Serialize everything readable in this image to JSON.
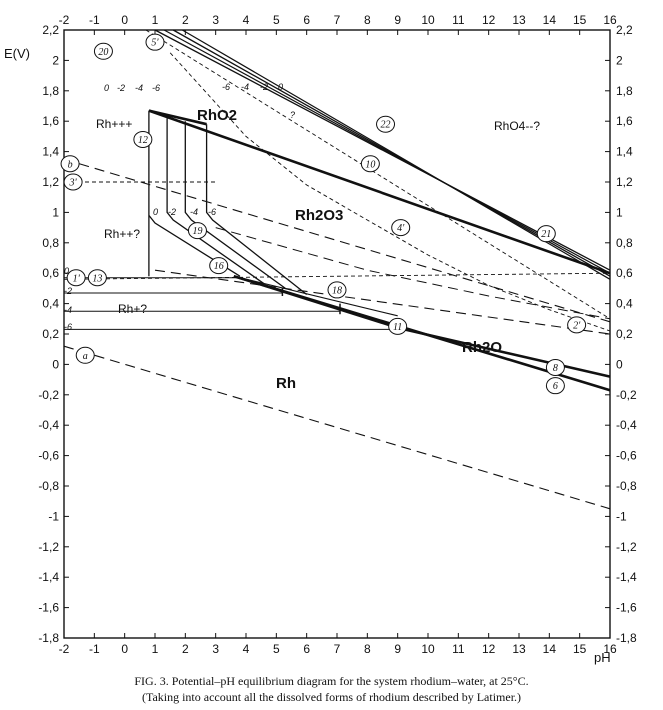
{
  "axes": {
    "ylabel": "E(V)",
    "xlabel": "pH",
    "xlim": [
      -2,
      16
    ],
    "ylim": [
      -1.8,
      2.2
    ],
    "x_ticks": [
      "-2",
      "-1",
      "0",
      "1",
      "2",
      "3",
      "4",
      "5",
      "6",
      "7",
      "8",
      "9",
      "10",
      "11",
      "12",
      "13",
      "14",
      "15",
      "16"
    ],
    "y_ticks": [
      "2,2",
      "2",
      "1,8",
      "1,6",
      "1,4",
      "1,2",
      "1",
      "0,8",
      "0,6",
      "0,4",
      "0,2",
      "0",
      "-0,2",
      "-0,4",
      "-0,6",
      "-0,8",
      "-1",
      "-1,2",
      "-1,4",
      "-1,6",
      "-1,8"
    ]
  },
  "regions": {
    "rh3plus": "Rh+++",
    "rho2": "RhO2",
    "rho4": "RhO4--?",
    "rh2o3": "Rh2O3",
    "rh2plus": "Rh++?",
    "rhplus": "Rh+?",
    "rh2o": "Rh2O",
    "rh": "Rh"
  },
  "line_numbers": [
    "20",
    "5'",
    "22",
    "10",
    "12",
    "b",
    "3'",
    "19",
    "16",
    "4'",
    "21",
    "1'",
    "13",
    "18",
    "11",
    "2'",
    "a",
    "8",
    "6"
  ],
  "concentration_labels": {
    "top": [
      "0",
      "-2",
      "-4",
      "-6"
    ],
    "top_right": [
      "-6",
      "-4",
      "-2",
      "0"
    ],
    "mid": [
      "0",
      "-2",
      "-4",
      "-6"
    ],
    "left": [
      "0",
      "-2",
      "-4",
      "-6"
    ],
    "question": "?"
  },
  "caption": {
    "line1": "FIG. 3. Potential–pH equilibrium diagram for the system rhodium–water, at 25°C.",
    "line2": "(Taking into account all the dissolved forms of rhodium described by Latimer.)"
  },
  "chart_data": {
    "type": "diagram",
    "xlabel": "pH",
    "ylabel": "E(V)",
    "xlim": [
      -2,
      16
    ],
    "ylim": [
      -1.8,
      2.2
    ],
    "lines": [
      {
        "label": "a",
        "style": "dashed",
        "points": [
          [
            -2,
            0.12
          ],
          [
            16,
            -0.95
          ]
        ]
      },
      {
        "label": "b",
        "style": "dashed",
        "points": [
          [
            -2,
            1.35
          ],
          [
            16,
            0.28
          ]
        ]
      },
      {
        "label": "2'",
        "style": "dashed",
        "points": [
          [
            1,
            0.62
          ],
          [
            16,
            0.2
          ]
        ]
      },
      {
        "label": "1'",
        "style": "short-dashed",
        "points": [
          [
            -2,
            0.56
          ],
          [
            16,
            0.6
          ]
        ]
      },
      {
        "label": "3'",
        "style": "short-dashed",
        "points": [
          [
            -2,
            1.2
          ],
          [
            3,
            1.2
          ]
        ]
      },
      {
        "label": "5'",
        "style": "short-dashed",
        "points": [
          [
            0.7,
            2.2
          ],
          [
            16,
            0.3
          ]
        ]
      },
      {
        "label": "10",
        "style": "thick",
        "points": [
          [
            0.8,
            1.67
          ],
          [
            16,
            0.6
          ]
        ]
      },
      {
        "label": "8",
        "style": "thick",
        "points": [
          [
            9,
            0.24
          ],
          [
            16,
            -0.08
          ]
        ]
      },
      {
        "label": "6",
        "style": "thick",
        "points": [
          [
            3.6,
            0.58
          ],
          [
            16,
            -0.17
          ]
        ]
      },
      {
        "label": "22",
        "style": "solid",
        "points": [
          [
            1,
            2.2
          ],
          [
            16,
            0.62
          ]
        ]
      },
      {
        "label": "21",
        "style": "solid",
        "points": [
          [
            1.6,
            2.2
          ],
          [
            16,
            0.58
          ]
        ]
      },
      {
        "label": "12",
        "style": "solid",
        "points": [
          [
            0.8,
            1.67
          ],
          [
            0.8,
            0.58
          ]
        ]
      },
      {
        "label": "13",
        "style": "thin",
        "points": [
          [
            -2,
            0.57
          ],
          [
            3.8,
            0.57
          ]
        ]
      },
      {
        "label": "11",
        "style": "thin",
        "points": [
          [
            -2,
            0.23
          ],
          [
            9,
            0.23
          ]
        ]
      }
    ]
  }
}
